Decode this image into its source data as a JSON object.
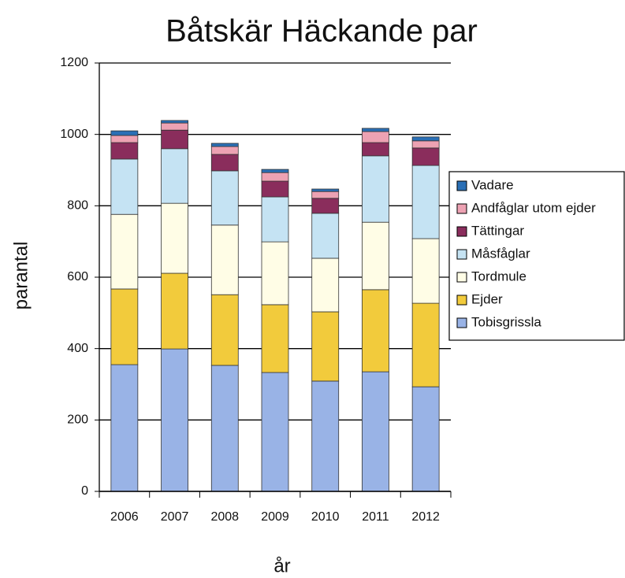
{
  "chart_data": {
    "type": "stacked_bar",
    "title": "Båtskär Häckande par",
    "x_label": "år",
    "y_label": "parantal",
    "categories": [
      "2006",
      "2007",
      "2008",
      "2009",
      "2010",
      "2011",
      "2012"
    ],
    "series": [
      {
        "name": "Tobisgrissla",
        "color": "#99b3e6",
        "values": [
          355,
          399,
          353,
          333,
          309,
          335,
          293
        ]
      },
      {
        "name": "Ejder",
        "color": "#f2cb3c",
        "values": [
          212,
          212,
          198,
          190,
          194,
          230,
          234
        ]
      },
      {
        "name": "Tordmule",
        "color": "#fffde6",
        "values": [
          209,
          196,
          195,
          176,
          150,
          189,
          181
        ]
      },
      {
        "name": "Måsfåglar",
        "color": "#c5e3f3",
        "values": [
          155,
          153,
          152,
          126,
          126,
          186,
          205
        ]
      },
      {
        "name": "Tättingar",
        "color": "#8a2d5c",
        "values": [
          46,
          52,
          46,
          44,
          42,
          37,
          49
        ]
      },
      {
        "name": "Andfåglar utom ejder",
        "color": "#eda2b3",
        "values": [
          20,
          20,
          22,
          24,
          19,
          31,
          20
        ]
      },
      {
        "name": "Vadare",
        "color": "#2a6fb5",
        "values": [
          13,
          7,
          9,
          9,
          7,
          9,
          11
        ]
      }
    ],
    "ylim": [
      0,
      1200
    ],
    "yticks": [
      0,
      200,
      400,
      600,
      800,
      1000,
      1200
    ],
    "grid": true,
    "legend": "right"
  }
}
